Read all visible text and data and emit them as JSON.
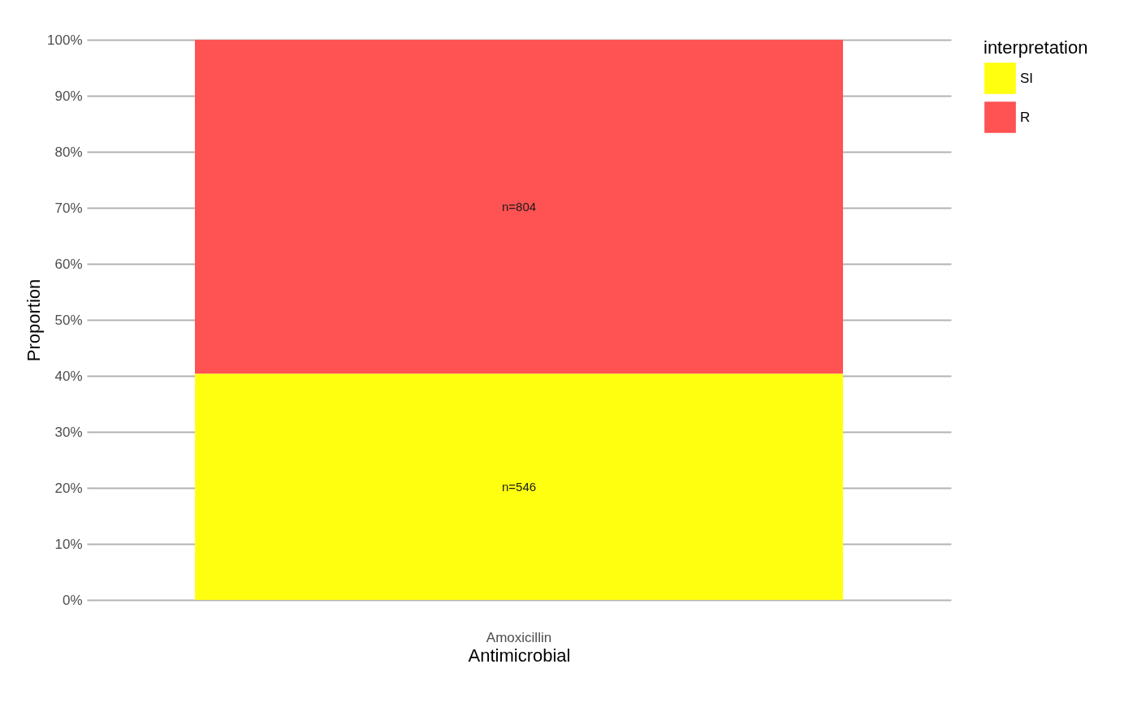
{
  "chart_data": {
    "type": "bar",
    "stacked": true,
    "xlabel": "Antimicrobial",
    "ylabel": "Proportion",
    "legend_title": "interpretation",
    "legend": "right",
    "grid": "y",
    "categories": [
      "Amoxicillin"
    ],
    "series": [
      {
        "name": "SI",
        "color": "#ffff10",
        "values": [
          40.4
        ]
      },
      {
        "name": "R",
        "color": "#ff5252",
        "values": [
          59.6
        ]
      }
    ],
    "annotations": [
      "n=546",
      "n=804"
    ],
    "ylim": [
      0,
      100
    ],
    "yticks": [
      {
        "value": 0,
        "label": "0%"
      },
      {
        "value": 10,
        "label": "10%"
      },
      {
        "value": 20,
        "label": "20%"
      },
      {
        "value": 30,
        "label": "30%"
      },
      {
        "value": 40,
        "label": "40%"
      },
      {
        "value": 50,
        "label": "50%"
      },
      {
        "value": 60,
        "label": "60%"
      },
      {
        "value": 70,
        "label": "70%"
      },
      {
        "value": 80,
        "label": "80%"
      },
      {
        "value": 90,
        "label": "90%"
      },
      {
        "value": 100,
        "label": "100%"
      }
    ]
  }
}
